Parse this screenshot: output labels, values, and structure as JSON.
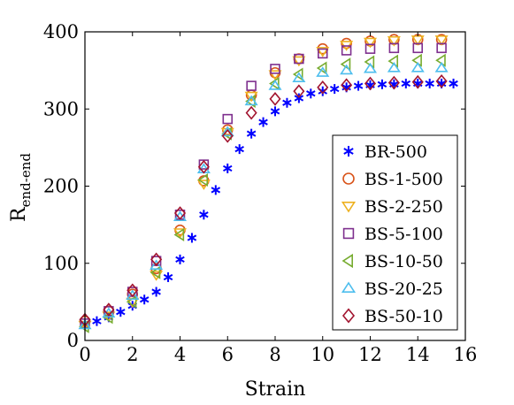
{
  "chart_data": {
    "type": "scatter",
    "xlabel": "Strain",
    "ylabel_main": "R",
    "ylabel_sub": "end-end",
    "xlim": [
      0,
      16
    ],
    "ylim": [
      0,
      400
    ],
    "xticks": [
      0,
      2,
      4,
      6,
      8,
      10,
      12,
      14,
      16
    ],
    "yticks": [
      0,
      100,
      200,
      300,
      400
    ],
    "grid": false,
    "legend_position": "right",
    "series": [
      {
        "name": "BR-500",
        "marker": "asterisk",
        "color": "#0000ff",
        "x": [
          0,
          0.5,
          1,
          1.5,
          2,
          2.5,
          3,
          3.5,
          4,
          4.5,
          5,
          5.5,
          6,
          6.5,
          7,
          7.5,
          8,
          8.5,
          9,
          9.5,
          10,
          10.5,
          11,
          11.5,
          12,
          12.5,
          13,
          13.5,
          14,
          14.5,
          15,
          15.5
        ],
        "y": [
          20,
          25,
          30,
          37,
          45,
          53,
          63,
          82,
          105,
          133,
          163,
          195,
          223,
          248,
          268,
          283,
          297,
          308,
          314,
          320,
          323,
          326,
          328,
          330,
          331,
          332,
          332,
          333,
          333,
          333,
          333,
          333
        ]
      },
      {
        "name": "BS-1-500",
        "marker": "circle",
        "color": "#d95319",
        "x": [
          0,
          1,
          2,
          3,
          4,
          5,
          6,
          7,
          8,
          9,
          10,
          11,
          12,
          13,
          14,
          15
        ],
        "y": [
          25,
          38,
          60,
          93,
          143,
          207,
          273,
          318,
          347,
          365,
          378,
          385,
          388,
          390,
          390,
          390
        ]
      },
      {
        "name": "BS-2-250",
        "marker": "triangle-down",
        "color": "#edb120",
        "x": [
          0,
          1,
          2,
          3,
          4,
          5,
          6,
          7,
          8,
          9,
          10,
          11,
          12,
          13,
          14,
          15
        ],
        "y": [
          20,
          32,
          50,
          85,
          140,
          203,
          270,
          317,
          345,
          363,
          375,
          383,
          387,
          389,
          390,
          390
        ]
      },
      {
        "name": "BS-5-100",
        "marker": "square",
        "color": "#7e2f8e",
        "x": [
          0,
          1,
          2,
          3,
          4,
          5,
          6,
          7,
          8,
          9,
          10,
          11,
          12,
          13,
          14,
          15
        ],
        "y": [
          22,
          38,
          63,
          103,
          163,
          228,
          287,
          330,
          352,
          365,
          372,
          376,
          378,
          379,
          379,
          379
        ]
      },
      {
        "name": "BS-10-50",
        "marker": "triangle-left",
        "color": "#77ac30",
        "x": [
          0,
          1,
          2,
          3,
          4,
          5,
          6,
          7,
          8,
          9,
          10,
          11,
          12,
          13,
          14,
          15
        ],
        "y": [
          18,
          30,
          50,
          88,
          137,
          208,
          268,
          310,
          333,
          345,
          353,
          358,
          361,
          362,
          363,
          363
        ]
      },
      {
        "name": "BS-20-25",
        "marker": "triangle-up",
        "color": "#4dbeee",
        "x": [
          0,
          1,
          2,
          3,
          4,
          5,
          6,
          7,
          8,
          9,
          10,
          11,
          12,
          13,
          14,
          15
        ],
        "y": [
          20,
          35,
          58,
          97,
          160,
          222,
          270,
          310,
          330,
          340,
          347,
          350,
          352,
          353,
          353,
          353
        ]
      },
      {
        "name": "BS-50-10",
        "marker": "diamond",
        "color": "#a2142f",
        "x": [
          0,
          1,
          2,
          3,
          4,
          5,
          6,
          7,
          8,
          9,
          10,
          11,
          12,
          13,
          14,
          15
        ],
        "y": [
          27,
          40,
          65,
          105,
          165,
          225,
          265,
          295,
          313,
          323,
          328,
          331,
          333,
          334,
          335,
          336
        ]
      }
    ]
  }
}
